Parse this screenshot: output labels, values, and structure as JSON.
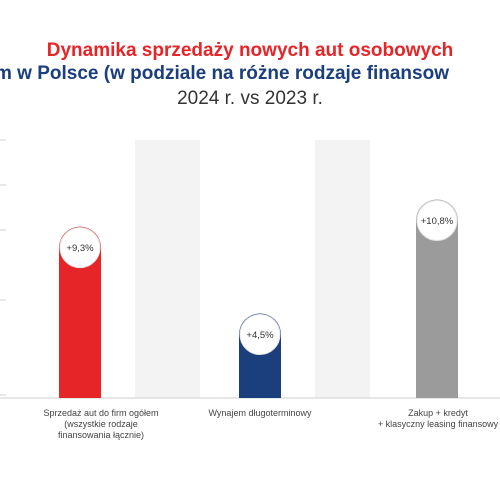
{
  "title": {
    "line1": "Dynamika sprzedaży nowych aut osobowych",
    "line2": "m w Polsce (w podziale na różne rodzaje finansow",
    "subtitle": "2024 r. vs 2023 r."
  },
  "colors": {
    "title_red": "#e52528",
    "title_blue": "#1b3e7d",
    "band_bg": "#f3f3f3"
  },
  "chart_data": {
    "type": "bar",
    "categories": [
      "Sprzedaż aut do firm ogółem (wszystkie rodzaje finansowania łącznie)",
      "Wynajem długoterminowy",
      "Zakup + kredyt + klasyczny leasing finansowy"
    ],
    "category_label_lines": [
      [
        "Sprzedaż aut do firm ogółem",
        "(wszystkie rodzaje",
        "finansowania łącznie)"
      ],
      [
        "Wynajem długoterminowy"
      ],
      [
        "Zakup + kredyt",
        "+ klasyczny leasing finansowy"
      ]
    ],
    "values": [
      9.3,
      4.5,
      10.8
    ],
    "value_labels": [
      "+9,3%",
      "+4,5%",
      "+10,8%"
    ],
    "bar_colors": [
      "#e52528",
      "#1b3e7d",
      "#9b9b9b"
    ],
    "ylim": [
      0,
      12
    ],
    "legend": "none",
    "grid": true
  }
}
